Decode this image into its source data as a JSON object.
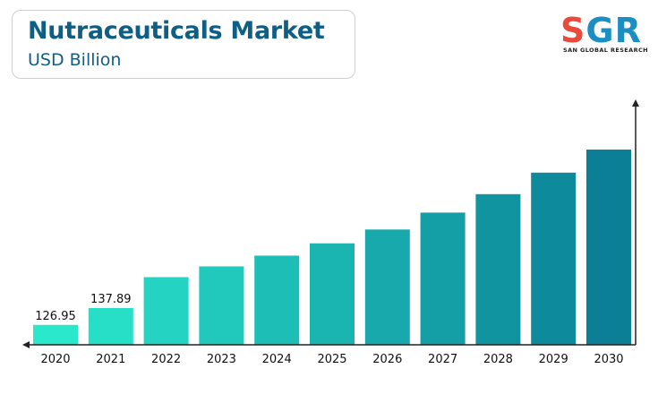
{
  "header": {
    "title": "Nutraceuticals Market",
    "subtitle": "USD Billion"
  },
  "logo": {
    "letter_s": "S",
    "letters_gr": "GR",
    "tagline": "SAN GLOBAL RESEARCH"
  },
  "chart_data": {
    "type": "bar",
    "title": "Nutraceuticals Market",
    "subtitle": "USD Billion",
    "xlabel": "",
    "ylabel": "",
    "categories": [
      "2020",
      "2021",
      "2022",
      "2023",
      "2024",
      "2025",
      "2026",
      "2027",
      "2028",
      "2029",
      "2030"
    ],
    "values": [
      126.95,
      137.89,
      158,
      165,
      172,
      180,
      189,
      200,
      212,
      226,
      241
    ],
    "data_labels": [
      "126.95",
      "137.89",
      "",
      "",
      "",
      "",
      "",
      "",
      "",
      "",
      ""
    ],
    "ylim": [
      114,
      255
    ],
    "grid": false,
    "legend": "none",
    "colors": {
      "start": "#2ae8cc",
      "end": "#0a7f95",
      "axis": "#222222"
    }
  }
}
